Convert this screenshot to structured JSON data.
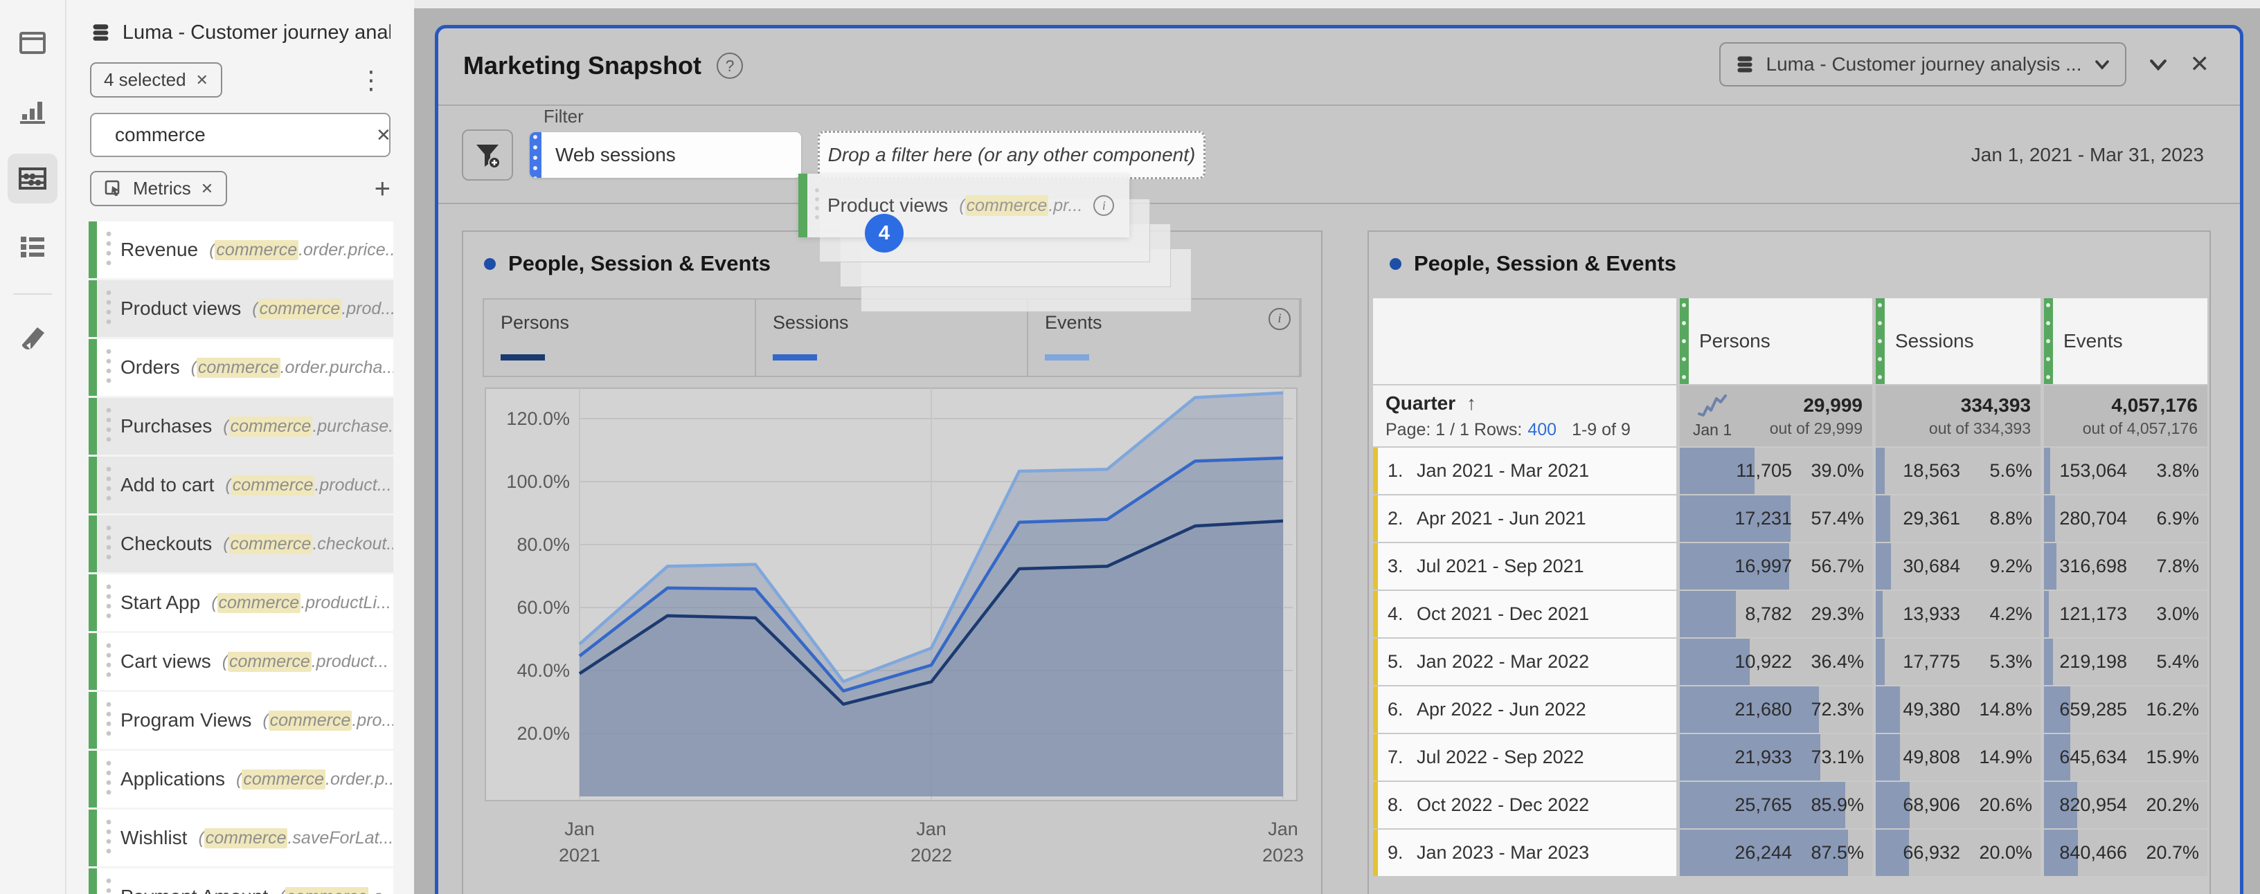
{
  "icons": {
    "question": "?",
    "info": "i",
    "sort_asc": "↑",
    "close": "✕",
    "menu_dots": "⋮",
    "plus": "+",
    "pill_close": "✕"
  },
  "colors": {
    "panel_border": "#2857be",
    "accent_blue": "#2d6de3",
    "bar_slate": "#8696b5",
    "metric_green": "#57a85e",
    "row_yellow": "#e3c336",
    "link_blue": "#2e6fd6",
    "highlight_yellow": "#f0e7bb"
  },
  "rail": {
    "items": [
      "panels",
      "visualizations",
      "components",
      "list",
      "annotations"
    ]
  },
  "sidebar": {
    "dataset_title": "Luma - Customer journey analy...",
    "selected_pill": "4 selected",
    "search_value": "commerce",
    "component_type_pill": "Metrics",
    "metrics": [
      {
        "name": "Revenue",
        "pre": "(",
        "hl": "commerce",
        "post": ".order.price...",
        "selected": false
      },
      {
        "name": "Product views",
        "pre": "(",
        "hl": "commerce",
        "post": ".prod...",
        "selected": true
      },
      {
        "name": "Orders",
        "pre": "(",
        "hl": "commerce",
        "post": ".order.purcha...",
        "selected": false
      },
      {
        "name": "Purchases",
        "pre": "(",
        "hl": "commerce",
        "post": ".purchase...",
        "selected": true
      },
      {
        "name": "Add to cart",
        "pre": "(",
        "hl": "commerce",
        "post": ".product...",
        "selected": true
      },
      {
        "name": "Checkouts",
        "pre": "(",
        "hl": "commerce",
        "post": ".checkout...",
        "selected": true
      },
      {
        "name": "Start App",
        "pre": "(",
        "hl": "commerce",
        "post": ".productLi...",
        "selected": false
      },
      {
        "name": "Cart views",
        "pre": "(",
        "hl": "commerce",
        "post": ".product...",
        "selected": false
      },
      {
        "name": "Program Views",
        "pre": "(",
        "hl": "commerce",
        "post": ".pro...",
        "selected": false
      },
      {
        "name": "Applications",
        "pre": "(",
        "hl": "commerce",
        "post": ".order.p...",
        "selected": false
      },
      {
        "name": "Wishlist",
        "pre": "(",
        "hl": "commerce",
        "post": ".saveForLat...",
        "selected": false
      },
      {
        "name": "Payment Amount",
        "pre": "(",
        "hl": "commerce",
        "post": ".o...",
        "selected": false
      }
    ]
  },
  "panel": {
    "title": "Marketing Snapshot",
    "dataset_selector": "Luma - Customer journey analysis ...",
    "date_range": "Jan 1, 2021 - Mar 31, 2023",
    "filter_label": "Filter",
    "segment_chip": "Web sessions",
    "dropzone_text": "Drop a filter here (or any other component)",
    "drag_chip": {
      "name": "Product views",
      "pre": "(",
      "hl": "commerce",
      "post": ".pr...",
      "badge": "4"
    }
  },
  "chart_card": {
    "title": "People, Session & Events",
    "legend": [
      {
        "label": "Persons",
        "color": "#1b3a70"
      },
      {
        "label": "Sessions",
        "color": "#3468c8"
      },
      {
        "label": "Events",
        "color": "#7fa7dc"
      }
    ]
  },
  "chart_data": {
    "type": "area",
    "title": "People, Session & Events",
    "stacked": true,
    "unit": "percent_of_total",
    "grid": true,
    "legend_position": "top",
    "ylim": [
      0,
      132
    ],
    "x_categories": [
      "Jan 2021 - Mar 2021",
      "Apr 2021 - Jun 2021",
      "Jul 2021 - Sep 2021",
      "Oct 2021 - Dec 2021",
      "Jan 2022 - Mar 2022",
      "Apr 2022 - Jun 2022",
      "Jul 2022 - Sep 2022",
      "Oct 2022 - Dec 2022",
      "Jan 2023 - Mar 2023"
    ],
    "yticks": [
      {
        "v": 20,
        "label": "20.0%"
      },
      {
        "v": 40,
        "label": "40.0%"
      },
      {
        "v": 60,
        "label": "60.0%"
      },
      {
        "v": 80,
        "label": "80.0%"
      },
      {
        "v": 100,
        "label": "100.0%"
      },
      {
        "v": 120,
        "label": "120.0%"
      }
    ],
    "x_ticks": [
      {
        "i": 0,
        "l1": "Jan",
        "l2": "2021"
      },
      {
        "i": 4,
        "l1": "Jan",
        "l2": "2022"
      },
      {
        "i": 8,
        "l1": "Jan",
        "l2": "2023"
      }
    ],
    "area_fill": "#7c8cab",
    "series": [
      {
        "name": "Persons",
        "color": "#1b3a70",
        "pct_of_total": [
          39.0,
          57.4,
          56.7,
          29.3,
          36.4,
          72.3,
          73.1,
          85.9,
          87.5
        ],
        "plotted_cumulative": [
          39.0,
          57.4,
          56.7,
          29.3,
          36.4,
          72.3,
          73.1,
          85.9,
          87.5
        ]
      },
      {
        "name": "Sessions",
        "color": "#3468c8",
        "pct_of_total": [
          5.6,
          8.8,
          9.2,
          4.2,
          5.3,
          14.8,
          14.9,
          20.6,
          20.0
        ],
        "plotted_cumulative": [
          44.6,
          66.2,
          65.9,
          33.5,
          41.7,
          87.1,
          88.0,
          106.5,
          107.5
        ]
      },
      {
        "name": "Events",
        "color": "#7fa7dc",
        "pct_of_total": [
          3.8,
          6.9,
          7.8,
          3.0,
          5.4,
          16.2,
          15.9,
          20.2,
          20.7
        ],
        "plotted_cumulative": [
          48.4,
          73.1,
          73.7,
          36.5,
          47.1,
          103.3,
          103.9,
          126.7,
          128.2
        ]
      }
    ]
  },
  "table_card": {
    "title": "People, Session & Events",
    "dimension_label": "Quarter",
    "columns": [
      "Persons",
      "Sessions",
      "Events"
    ],
    "pager": {
      "prefix": "Page: 1 / 1",
      "rows_label": "Rows:",
      "rows_value": "400",
      "range": "1-9 of 9"
    },
    "totals_period_label": "Jan 1",
    "totals": [
      {
        "value": "29,999",
        "out_of": "out of 29,999"
      },
      {
        "value": "334,393",
        "out_of": "out of 334,393"
      },
      {
        "value": "4,057,176",
        "out_of": "out of 4,057,176"
      }
    ],
    "rows": [
      {
        "rank": "1.",
        "period": "Jan 2021 - Mar 2021",
        "cells": [
          {
            "value": "11,705",
            "pct": "39.0%",
            "bar": 39.0
          },
          {
            "value": "18,563",
            "pct": "5.6%",
            "bar": 5.6
          },
          {
            "value": "153,064",
            "pct": "3.8%",
            "bar": 3.8
          }
        ]
      },
      {
        "rank": "2.",
        "period": "Apr 2021 - Jun 2021",
        "cells": [
          {
            "value": "17,231",
            "pct": "57.4%",
            "bar": 57.4
          },
          {
            "value": "29,361",
            "pct": "8.8%",
            "bar": 8.8
          },
          {
            "value": "280,704",
            "pct": "6.9%",
            "bar": 6.9
          }
        ]
      },
      {
        "rank": "3.",
        "period": "Jul 2021 - Sep 2021",
        "cells": [
          {
            "value": "16,997",
            "pct": "56.7%",
            "bar": 56.7
          },
          {
            "value": "30,684",
            "pct": "9.2%",
            "bar": 9.2
          },
          {
            "value": "316,698",
            "pct": "7.8%",
            "bar": 7.8
          }
        ]
      },
      {
        "rank": "4.",
        "period": "Oct 2021 - Dec 2021",
        "cells": [
          {
            "value": "8,782",
            "pct": "29.3%",
            "bar": 29.3
          },
          {
            "value": "13,933",
            "pct": "4.2%",
            "bar": 4.2
          },
          {
            "value": "121,173",
            "pct": "3.0%",
            "bar": 3.0
          }
        ]
      },
      {
        "rank": "5.",
        "period": "Jan 2022 - Mar 2022",
        "cells": [
          {
            "value": "10,922",
            "pct": "36.4%",
            "bar": 36.4
          },
          {
            "value": "17,775",
            "pct": "5.3%",
            "bar": 5.3
          },
          {
            "value": "219,198",
            "pct": "5.4%",
            "bar": 5.4
          }
        ]
      },
      {
        "rank": "6.",
        "period": "Apr 2022 - Jun 2022",
        "cells": [
          {
            "value": "21,680",
            "pct": "72.3%",
            "bar": 72.3
          },
          {
            "value": "49,380",
            "pct": "14.8%",
            "bar": 14.8
          },
          {
            "value": "659,285",
            "pct": "16.2%",
            "bar": 16.2
          }
        ]
      },
      {
        "rank": "7.",
        "period": "Jul 2022 - Sep 2022",
        "cells": [
          {
            "value": "21,933",
            "pct": "73.1%",
            "bar": 73.1
          },
          {
            "value": "49,808",
            "pct": "14.9%",
            "bar": 14.9
          },
          {
            "value": "645,634",
            "pct": "15.9%",
            "bar": 15.9
          }
        ]
      },
      {
        "rank": "8.",
        "period": "Oct 2022 - Dec 2022",
        "cells": [
          {
            "value": "25,765",
            "pct": "85.9%",
            "bar": 85.9
          },
          {
            "value": "68,906",
            "pct": "20.6%",
            "bar": 20.6
          },
          {
            "value": "820,954",
            "pct": "20.2%",
            "bar": 20.2
          }
        ]
      },
      {
        "rank": "9.",
        "period": "Jan 2023 - Mar 2023",
        "cells": [
          {
            "value": "26,244",
            "pct": "87.5%",
            "bar": 87.5
          },
          {
            "value": "66,932",
            "pct": "20.0%",
            "bar": 20.0
          },
          {
            "value": "840,466",
            "pct": "20.7%",
            "bar": 20.7
          }
        ]
      }
    ]
  }
}
